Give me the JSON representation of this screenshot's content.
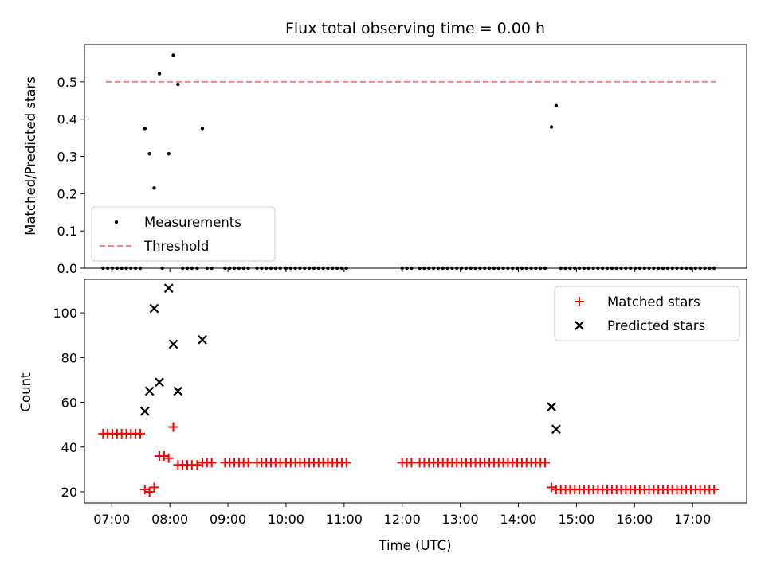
{
  "chart_data": [
    {
      "type": "scatter",
      "title": "Flux total observing time = 0.00 h",
      "ylabel": "Matched/Predicted stars",
      "xlabel": "",
      "xlim": [
        6.53,
        17.93
      ],
      "ylim": [
        0,
        0.6
      ],
      "yticks": [
        0.0,
        0.1,
        0.2,
        0.3,
        0.4,
        0.5
      ],
      "ytick_labels": [
        "0.0",
        "0.1",
        "0.2",
        "0.3",
        "0.4",
        "0.5"
      ],
      "xticks": [
        7,
        8,
        9,
        10,
        11,
        12,
        13,
        14,
        15,
        16,
        17
      ],
      "grid": false,
      "legend_position": "lower-left",
      "legend": [
        "Measurements",
        "Threshold"
      ],
      "threshold": {
        "name": "Threshold",
        "y": 0.5,
        "x_range": [
          6.9,
          17.4
        ],
        "color": "#ff8080"
      },
      "series": [
        {
          "name": "Measurements",
          "marker": "dot",
          "color": "#000000",
          "points": [
            [
              7.57,
              0.375
            ],
            [
              7.65,
              0.307
            ],
            [
              7.73,
              0.215
            ],
            [
              7.82,
              0.522
            ],
            [
              7.98,
              0.307
            ],
            [
              8.06,
              0.571
            ],
            [
              8.14,
              0.493
            ],
            [
              8.56,
              0.375
            ],
            [
              14.57,
              0.379
            ],
            [
              14.65,
              0.436
            ],
            [
              7.87,
              0.0
            ],
            [
              8.22,
              0.0
            ],
            [
              8.3,
              0.0
            ],
            [
              8.38,
              0.0
            ],
            [
              8.47,
              0.0
            ],
            [
              8.64,
              0.0
            ],
            [
              8.72,
              0.0
            ],
            [
              6.85,
              0.0
            ],
            [
              6.93,
              0.0
            ],
            [
              7.01,
              0.0
            ],
            [
              7.09,
              0.0
            ],
            [
              7.17,
              0.0
            ],
            [
              7.25,
              0.0
            ],
            [
              7.33,
              0.0
            ],
            [
              7.41,
              0.0
            ],
            [
              7.49,
              0.0
            ],
            [
              8.95,
              0.0
            ],
            [
              9.03,
              0.0
            ],
            [
              9.11,
              0.0
            ],
            [
              9.19,
              0.0
            ],
            [
              9.27,
              0.0
            ],
            [
              9.35,
              0.0
            ],
            [
              9.5,
              0.0
            ],
            [
              9.58,
              0.0
            ],
            [
              9.66,
              0.0
            ],
            [
              9.74,
              0.0
            ],
            [
              9.82,
              0.0
            ],
            [
              9.9,
              0.0
            ],
            [
              10.0,
              0.0
            ],
            [
              10.08,
              0.0
            ],
            [
              10.16,
              0.0
            ],
            [
              10.24,
              0.0
            ],
            [
              10.32,
              0.0
            ],
            [
              10.4,
              0.0
            ],
            [
              10.48,
              0.0
            ],
            [
              10.56,
              0.0
            ],
            [
              10.64,
              0.0
            ],
            [
              10.72,
              0.0
            ],
            [
              10.8,
              0.0
            ],
            [
              10.88,
              0.0
            ],
            [
              10.96,
              0.0
            ],
            [
              11.04,
              0.0
            ],
            [
              12.0,
              0.0
            ],
            [
              12.08,
              0.0
            ],
            [
              12.16,
              0.0
            ],
            [
              12.3,
              0.0
            ],
            [
              12.38,
              0.0
            ],
            [
              12.46,
              0.0
            ],
            [
              12.54,
              0.0
            ],
            [
              12.62,
              0.0
            ],
            [
              12.7,
              0.0
            ],
            [
              12.78,
              0.0
            ],
            [
              12.86,
              0.0
            ],
            [
              12.94,
              0.0
            ],
            [
              13.02,
              0.0
            ],
            [
              13.1,
              0.0
            ],
            [
              13.18,
              0.0
            ],
            [
              13.26,
              0.0
            ],
            [
              13.34,
              0.0
            ],
            [
              13.42,
              0.0
            ],
            [
              13.5,
              0.0
            ],
            [
              13.58,
              0.0
            ],
            [
              13.66,
              0.0
            ],
            [
              13.74,
              0.0
            ],
            [
              13.82,
              0.0
            ],
            [
              13.9,
              0.0
            ],
            [
              13.98,
              0.0
            ],
            [
              14.06,
              0.0
            ],
            [
              14.14,
              0.0
            ],
            [
              14.22,
              0.0
            ],
            [
              14.3,
              0.0
            ],
            [
              14.38,
              0.0
            ],
            [
              14.46,
              0.0
            ],
            [
              14.73,
              0.0
            ],
            [
              14.81,
              0.0
            ],
            [
              14.89,
              0.0
            ],
            [
              14.97,
              0.0
            ],
            [
              15.05,
              0.0
            ],
            [
              15.13,
              0.0
            ],
            [
              15.21,
              0.0
            ],
            [
              15.29,
              0.0
            ],
            [
              15.37,
              0.0
            ],
            [
              15.45,
              0.0
            ],
            [
              15.53,
              0.0
            ],
            [
              15.61,
              0.0
            ],
            [
              15.69,
              0.0
            ],
            [
              15.77,
              0.0
            ],
            [
              15.85,
              0.0
            ],
            [
              15.93,
              0.0
            ],
            [
              16.01,
              0.0
            ],
            [
              16.09,
              0.0
            ],
            [
              16.17,
              0.0
            ],
            [
              16.25,
              0.0
            ],
            [
              16.33,
              0.0
            ],
            [
              16.41,
              0.0
            ],
            [
              16.49,
              0.0
            ],
            [
              16.57,
              0.0
            ],
            [
              16.65,
              0.0
            ],
            [
              16.73,
              0.0
            ],
            [
              16.81,
              0.0
            ],
            [
              16.89,
              0.0
            ],
            [
              16.97,
              0.0
            ],
            [
              17.05,
              0.0
            ],
            [
              17.13,
              0.0
            ],
            [
              17.21,
              0.0
            ],
            [
              17.29,
              0.0
            ],
            [
              17.37,
              0.0
            ]
          ]
        }
      ]
    },
    {
      "type": "scatter",
      "title": "",
      "ylabel": "Count",
      "xlabel": "Time (UTC)",
      "xlim": [
        6.53,
        17.93
      ],
      "ylim": [
        15,
        115
      ],
      "yticks": [
        20,
        40,
        60,
        80,
        100
      ],
      "ytick_labels": [
        "20",
        "40",
        "60",
        "80",
        "100"
      ],
      "xticks": [
        7,
        8,
        9,
        10,
        11,
        12,
        13,
        14,
        15,
        16,
        17
      ],
      "xtick_labels": [
        "07:00",
        "08:00",
        "09:00",
        "10:00",
        "11:00",
        "12:00",
        "13:00",
        "14:00",
        "15:00",
        "16:00",
        "17:00"
      ],
      "grid": false,
      "legend_position": "upper-right",
      "legend": [
        "Matched stars",
        "Predicted stars"
      ],
      "series": [
        {
          "name": "Matched stars",
          "marker": "plus",
          "color": "#ff0000",
          "points": [
            [
              6.85,
              46
            ],
            [
              6.93,
              46
            ],
            [
              7.01,
              46
            ],
            [
              7.09,
              46
            ],
            [
              7.17,
              46
            ],
            [
              7.25,
              46
            ],
            [
              7.33,
              46
            ],
            [
              7.41,
              46
            ],
            [
              7.49,
              46
            ],
            [
              7.57,
              21
            ],
            [
              7.65,
              20
            ],
            [
              7.73,
              22
            ],
            [
              7.82,
              36
            ],
            [
              7.9,
              36
            ],
            [
              7.98,
              35
            ],
            [
              8.06,
              49
            ],
            [
              8.14,
              32
            ],
            [
              8.22,
              32
            ],
            [
              8.3,
              32
            ],
            [
              8.38,
              32
            ],
            [
              8.47,
              32
            ],
            [
              8.56,
              33
            ],
            [
              8.64,
              33
            ],
            [
              8.72,
              33
            ],
            [
              8.95,
              33
            ],
            [
              9.03,
              33
            ],
            [
              9.11,
              33
            ],
            [
              9.19,
              33
            ],
            [
              9.27,
              33
            ],
            [
              9.35,
              33
            ],
            [
              9.5,
              33
            ],
            [
              9.58,
              33
            ],
            [
              9.66,
              33
            ],
            [
              9.74,
              33
            ],
            [
              9.82,
              33
            ],
            [
              9.9,
              33
            ],
            [
              10.0,
              33
            ],
            [
              10.08,
              33
            ],
            [
              10.16,
              33
            ],
            [
              10.24,
              33
            ],
            [
              10.32,
              33
            ],
            [
              10.4,
              33
            ],
            [
              10.48,
              33
            ],
            [
              10.56,
              33
            ],
            [
              10.64,
              33
            ],
            [
              10.72,
              33
            ],
            [
              10.8,
              33
            ],
            [
              10.88,
              33
            ],
            [
              10.96,
              33
            ],
            [
              11.04,
              33
            ],
            [
              12.0,
              33
            ],
            [
              12.08,
              33
            ],
            [
              12.16,
              33
            ],
            [
              12.3,
              33
            ],
            [
              12.38,
              33
            ],
            [
              12.46,
              33
            ],
            [
              12.54,
              33
            ],
            [
              12.62,
              33
            ],
            [
              12.7,
              33
            ],
            [
              12.78,
              33
            ],
            [
              12.86,
              33
            ],
            [
              12.94,
              33
            ],
            [
              13.02,
              33
            ],
            [
              13.1,
              33
            ],
            [
              13.18,
              33
            ],
            [
              13.26,
              33
            ],
            [
              13.34,
              33
            ],
            [
              13.42,
              33
            ],
            [
              13.5,
              33
            ],
            [
              13.58,
              33
            ],
            [
              13.66,
              33
            ],
            [
              13.74,
              33
            ],
            [
              13.82,
              33
            ],
            [
              13.9,
              33
            ],
            [
              13.98,
              33
            ],
            [
              14.06,
              33
            ],
            [
              14.14,
              33
            ],
            [
              14.22,
              33
            ],
            [
              14.3,
              33
            ],
            [
              14.38,
              33
            ],
            [
              14.46,
              33
            ],
            [
              14.57,
              22
            ],
            [
              14.65,
              21
            ],
            [
              14.73,
              21
            ],
            [
              14.81,
              21
            ],
            [
              14.89,
              21
            ],
            [
              14.97,
              21
            ],
            [
              15.05,
              21
            ],
            [
              15.13,
              21
            ],
            [
              15.21,
              21
            ],
            [
              15.29,
              21
            ],
            [
              15.37,
              21
            ],
            [
              15.45,
              21
            ],
            [
              15.53,
              21
            ],
            [
              15.61,
              21
            ],
            [
              15.69,
              21
            ],
            [
              15.77,
              21
            ],
            [
              15.85,
              21
            ],
            [
              15.93,
              21
            ],
            [
              16.01,
              21
            ],
            [
              16.09,
              21
            ],
            [
              16.17,
              21
            ],
            [
              16.25,
              21
            ],
            [
              16.33,
              21
            ],
            [
              16.41,
              21
            ],
            [
              16.49,
              21
            ],
            [
              16.57,
              21
            ],
            [
              16.65,
              21
            ],
            [
              16.73,
              21
            ],
            [
              16.81,
              21
            ],
            [
              16.89,
              21
            ],
            [
              16.97,
              21
            ],
            [
              17.05,
              21
            ],
            [
              17.13,
              21
            ],
            [
              17.21,
              21
            ],
            [
              17.29,
              21
            ],
            [
              17.37,
              21
            ]
          ]
        },
        {
          "name": "Predicted stars",
          "marker": "x",
          "color": "#000000",
          "points": [
            [
              7.57,
              56
            ],
            [
              7.65,
              65
            ],
            [
              7.73,
              102
            ],
            [
              7.82,
              69
            ],
            [
              7.98,
              111
            ],
            [
              8.06,
              86
            ],
            [
              8.14,
              65
            ],
            [
              8.56,
              88
            ],
            [
              14.57,
              58
            ],
            [
              14.65,
              48
            ]
          ]
        }
      ]
    }
  ]
}
